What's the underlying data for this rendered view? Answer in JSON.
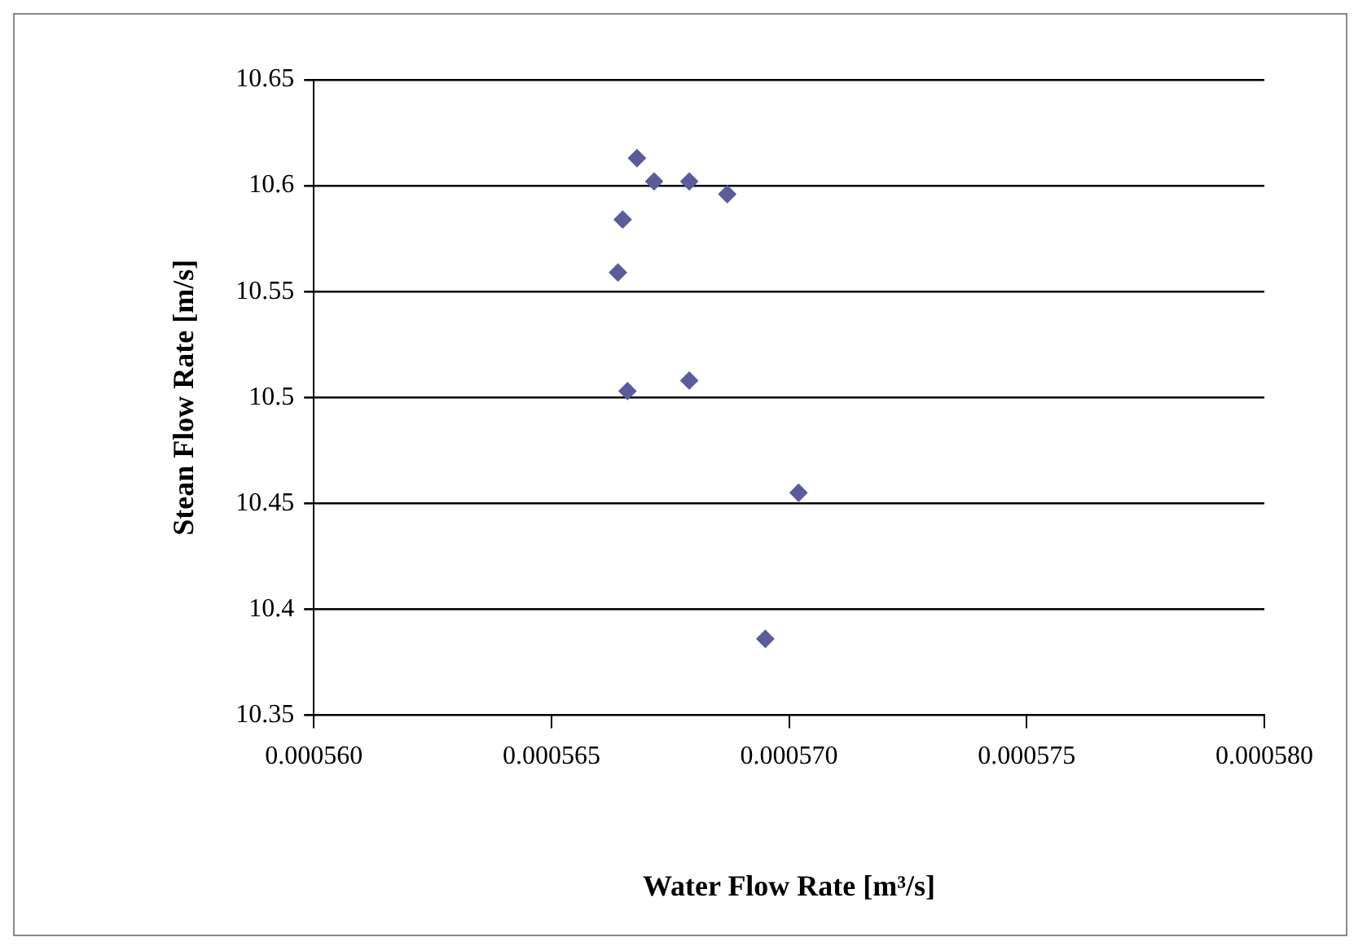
{
  "chart_data": {
    "type": "scatter",
    "xlabel": "Water Flow Rate [m³/s]",
    "ylabel": "Stean Flow Rate [m/s]",
    "x": [
      0.0005668,
      0.00056716,
      0.0005679,
      0.0005687,
      0.0005665,
      0.0005664,
      0.0005666,
      0.0005679,
      0.0005702,
      0.0005695
    ],
    "series": [
      {
        "color": "#5c5c9c",
        "values": [
          10.613,
          10.602,
          10.602,
          10.596,
          10.584,
          10.559,
          10.503,
          10.508,
          10.455,
          10.386
        ]
      }
    ],
    "xlim": [
      0.00056,
      0.00058
    ],
    "xticks": [
      {
        "value": 0.00056,
        "label": "0.000560"
      },
      {
        "value": 0.000565,
        "label": "0.000565"
      },
      {
        "value": 0.00057,
        "label": "0.000570"
      },
      {
        "value": 0.000575,
        "label": "0.000575"
      },
      {
        "value": 0.00058,
        "label": "0.000580"
      }
    ],
    "ylim": [
      10.35,
      10.65
    ],
    "yticks": [
      10.35,
      10.4,
      10.45,
      10.5,
      10.55,
      10.6,
      10.65
    ],
    "grid": "y",
    "legend": false,
    "marker": "diamond"
  }
}
